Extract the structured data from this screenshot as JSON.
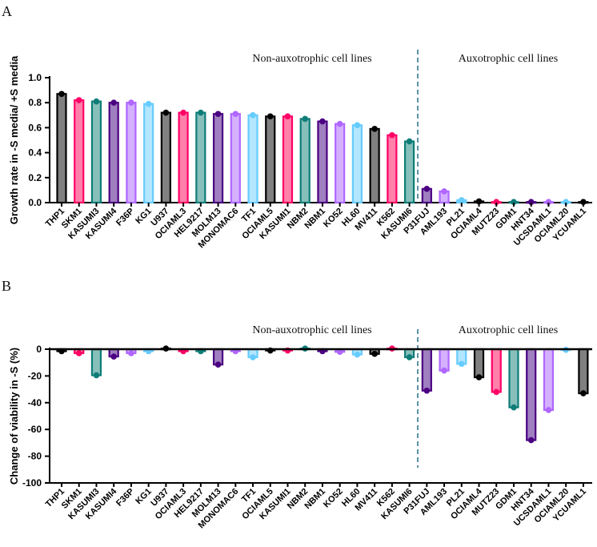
{
  "chart_data": [
    {
      "panel": "A",
      "type": "bar",
      "ylabel": "Growth rate in -S media/ +S media",
      "ylim": [
        0,
        1.0
      ],
      "yticks": [
        "0.0",
        "0.2",
        "0.4",
        "0.6",
        "0.8",
        "1.0"
      ],
      "ytick_values": [
        0,
        0.2,
        0.4,
        0.6,
        0.8,
        1.0
      ],
      "group_labels": [
        "Non-auxotrophic cell lines",
        "Auxotrophic cell lines"
      ],
      "categories": [
        "THP1",
        "SKM1",
        "KASUMI3",
        "KASUMI4",
        "F36P",
        "KG1",
        "U937",
        "OCIAML3",
        "HEL9217",
        "MOLM13",
        "MONOMAC6",
        "TF1",
        "OCIAML5",
        "KASUMI1",
        "NBM2",
        "NBM1",
        "KO52",
        "HL60",
        "MV411",
        "K562",
        "KASUMI6",
        "P31FUJ",
        "AML193",
        "PL21",
        "OCIAML4",
        "MUTZ23",
        "GDM1",
        "HNT34",
        "UCSDAML1",
        "OCIAML20",
        "YCUAML1"
      ],
      "values": [
        0.87,
        0.82,
        0.81,
        0.8,
        0.8,
        0.79,
        0.72,
        0.72,
        0.72,
        0.71,
        0.71,
        0.7,
        0.69,
        0.69,
        0.67,
        0.65,
        0.63,
        0.62,
        0.59,
        0.54,
        0.49,
        0.11,
        0.09,
        0.02,
        0.01,
        0.005,
        0.005,
        0.005,
        0.005,
        0.005,
        0.005
      ]
    },
    {
      "panel": "B",
      "type": "bar",
      "ylabel": "Change of viability in -S (%)",
      "ylim": [
        -100,
        0
      ],
      "yticks": [
        "0",
        "-20",
        "-40",
        "-60",
        "-80",
        "-100"
      ],
      "ytick_values": [
        0,
        -20,
        -40,
        -60,
        -80,
        -100
      ],
      "group_labels": [
        "Non-auxotrophic cell lines",
        "Auxotrophic cell lines"
      ],
      "categories": [
        "THP1",
        "SKM1",
        "KASUMI3",
        "KASUMI4",
        "F36P",
        "KG1",
        "U937",
        "OCIAML3",
        "HEL9217",
        "MOLM13",
        "MONOMAC6",
        "TF1",
        "OCIAML5",
        "KASUMI1",
        "NBM2",
        "NBM1",
        "KO52",
        "HL60",
        "MV411",
        "K562",
        "KASUMI6",
        "P31FUJ",
        "AML193",
        "PL21",
        "OCIAML4",
        "MUTZ23",
        "GDM1",
        "HNT34",
        "UCSDAML1",
        "OCIAML20",
        "YCUAML1"
      ],
      "values": [
        -1.5,
        -3,
        -19.5,
        -5.5,
        -3,
        -1.5,
        0.5,
        -1.5,
        -1.5,
        -11.5,
        -1.5,
        -6,
        -1,
        -1,
        0.5,
        -1.5,
        -2,
        -4,
        -3.5,
        0.5,
        -6,
        -31,
        -16,
        -11,
        -21,
        -32,
        -43.5,
        -68,
        -45.5,
        -0.5,
        -33
      ]
    }
  ],
  "colors": {
    "cycle_stroke": [
      "#000000",
      "#ff0066",
      "#0e7d78",
      "#4b0082",
      "#b066ff",
      "#66ccff"
    ],
    "cycle_fill": [
      "#808080",
      "#ff80aa",
      "#87bfbb",
      "#9f7fbf",
      "#d4b0ff",
      "#b3e6ff"
    ],
    "divider": "#2a6a8a"
  }
}
